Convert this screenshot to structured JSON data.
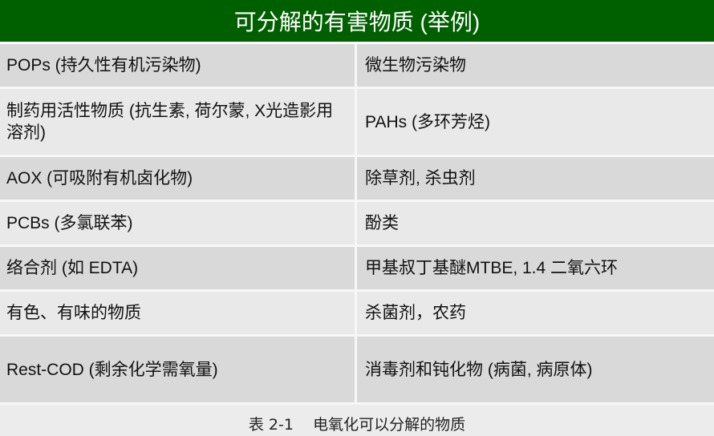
{
  "table": {
    "title": "可分解的有害物质 (举例)",
    "header_color": "#006000",
    "rows": [
      [
        "POPs (持久性有机污染物)",
        "微生物污染物"
      ],
      [
        "制药用活性物质 (抗生素, 荷尔蒙, X光造影用溶剂)",
        "PAHs (多环芳烃)"
      ],
      [
        "AOX (可吸附有机卤化物)",
        "除草剂, 杀虫剂"
      ],
      [
        "PCBs (多氯联苯)",
        "酚类"
      ],
      [
        "络合剂 (如 EDTA)",
        "甲基叔丁基醚MTBE, 1.4 二氧六环"
      ],
      [
        "有色、有味的物质",
        "杀菌剂，农药"
      ],
      [
        "Rest-COD (剩余化学需氧量)",
        "消毒剂和钝化物 (病菌, 病原体)"
      ]
    ]
  },
  "caption": "表 2-1    电氧化可以分解的物质"
}
